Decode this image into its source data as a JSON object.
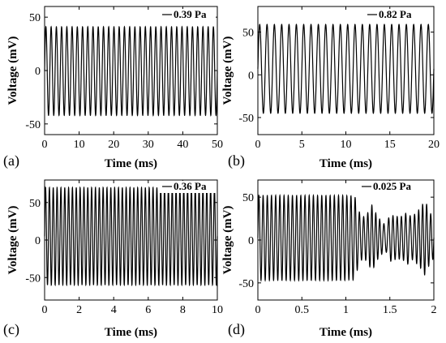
{
  "chart_data": [
    {
      "type": "line",
      "tag": "(a)",
      "legend": "0.39 Pa",
      "xlabel": "Time (ms)",
      "ylabel": "Voltage (mV)",
      "xlim": [
        0,
        50
      ],
      "ylim": [
        -60,
        60
      ],
      "xticks": [
        0,
        10,
        20,
        30,
        40,
        50
      ],
      "xtick_labels": [
        "0",
        "10",
        "20",
        "30",
        "40",
        "50"
      ],
      "yticks": [
        50,
        0,
        -50
      ],
      "ytick_labels": [
        "50",
        "0",
        "-50"
      ],
      "series": [
        {
          "kind": "sine",
          "cycles": 33,
          "max": 41,
          "min": -42
        }
      ]
    },
    {
      "type": "line",
      "tag": "(b)",
      "legend": "0.82 Pa",
      "xlabel": "Time (ms)",
      "ylabel": "Voltage (mV)",
      "xlim": [
        0,
        20
      ],
      "ylim": [
        -70,
        80
      ],
      "xticks": [
        0,
        5,
        10,
        15,
        20
      ],
      "xtick_labels": [
        "0",
        "5",
        "10",
        "15",
        "20"
      ],
      "yticks": [
        50,
        0,
        -50
      ],
      "ytick_labels": [
        "50",
        "0",
        "-50"
      ],
      "series": [
        {
          "kind": "sine",
          "cycles": 24,
          "max": 59,
          "min": -45
        }
      ]
    },
    {
      "type": "line",
      "tag": "(c)",
      "legend": "0.36 Pa",
      "xlabel": "Time (ms)",
      "ylabel": "Voltage (mV)",
      "xlim": [
        0,
        10
      ],
      "ylim": [
        -80,
        80
      ],
      "xticks": [
        0,
        2,
        4,
        6,
        8,
        10
      ],
      "xtick_labels": [
        "0",
        "2",
        "4",
        "6",
        "8",
        "10"
      ],
      "yticks": [
        50,
        0,
        -50
      ],
      "ytick_labels": [
        "50",
        "0",
        "-50"
      ],
      "series": [
        {
          "kind": "sine",
          "cycles": 45,
          "max": 70,
          "min": -60
        }
      ]
    },
    {
      "type": "line",
      "tag": "(d)",
      "legend": "0.025 Pa",
      "xlabel": "Time (ms)",
      "ylabel": "Voltage (mV)",
      "xlim": [
        0,
        2
      ],
      "ylim": [
        -70,
        70
      ],
      "xticks": [
        0,
        0.5,
        1,
        1.5,
        2
      ],
      "xtick_labels": [
        "0",
        "0.5",
        "1",
        "1.5",
        "2"
      ],
      "yticks": [
        50,
        0,
        -50
      ],
      "ytick_labels": [
        "50",
        "0",
        "-50"
      ],
      "series": [
        {
          "kind": "beat",
          "cycles": 42,
          "max": 52,
          "min": -47,
          "beat_from": 1.0
        }
      ]
    }
  ]
}
